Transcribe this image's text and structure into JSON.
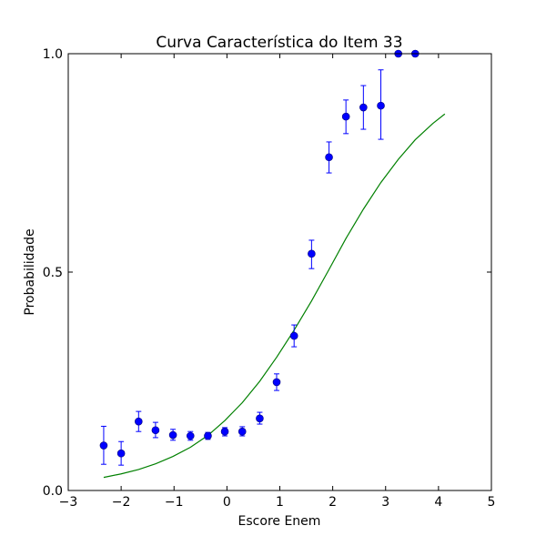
{
  "chart_data": {
    "type": "scatter",
    "title": "Curva Característica do Item 33",
    "xlabel": "Escore Enem",
    "ylabel": "Probabilidade",
    "xlim": [
      -3,
      5
    ],
    "ylim": [
      0.0,
      1.0
    ],
    "x_ticks": [
      {
        "value": -3,
        "label": "−3"
      },
      {
        "value": -2,
        "label": "−2"
      },
      {
        "value": -1,
        "label": "−1"
      },
      {
        "value": 0,
        "label": "0"
      },
      {
        "value": 1,
        "label": "1"
      },
      {
        "value": 2,
        "label": "2"
      },
      {
        "value": 3,
        "label": "3"
      },
      {
        "value": 4,
        "label": "4"
      },
      {
        "value": 5,
        "label": "5"
      }
    ],
    "y_ticks": [
      {
        "value": 0.0,
        "label": "0.0"
      },
      {
        "value": 0.5,
        "label": "0.5"
      },
      {
        "value": 1.0,
        "label": "1.0"
      }
    ],
    "grid": false,
    "series": [
      {
        "kind": "errorbar-points",
        "color": "#0000ff",
        "points": [
          {
            "x": -2.33,
            "y": 0.103,
            "lo": 0.06,
            "hi": 0.147
          },
          {
            "x": -2.0,
            "y": 0.085,
            "lo": 0.058,
            "hi": 0.112
          },
          {
            "x": -1.67,
            "y": 0.158,
            "lo": 0.135,
            "hi": 0.181
          },
          {
            "x": -1.35,
            "y": 0.138,
            "lo": 0.121,
            "hi": 0.156
          },
          {
            "x": -1.02,
            "y": 0.127,
            "lo": 0.115,
            "hi": 0.14
          },
          {
            "x": -0.69,
            "y": 0.125,
            "lo": 0.115,
            "hi": 0.135
          },
          {
            "x": -0.36,
            "y": 0.125,
            "lo": 0.117,
            "hi": 0.133
          },
          {
            "x": -0.04,
            "y": 0.135,
            "lo": 0.125,
            "hi": 0.144
          },
          {
            "x": 0.29,
            "y": 0.135,
            "lo": 0.125,
            "hi": 0.146
          },
          {
            "x": 0.62,
            "y": 0.165,
            "lo": 0.152,
            "hi": 0.179
          },
          {
            "x": 0.94,
            "y": 0.248,
            "lo": 0.229,
            "hi": 0.267
          },
          {
            "x": 1.27,
            "y": 0.354,
            "lo": 0.329,
            "hi": 0.379
          },
          {
            "x": 1.6,
            "y": 0.542,
            "lo": 0.508,
            "hi": 0.573
          },
          {
            "x": 1.93,
            "y": 0.763,
            "lo": 0.727,
            "hi": 0.798
          },
          {
            "x": 2.25,
            "y": 0.856,
            "lo": 0.817,
            "hi": 0.894
          },
          {
            "x": 2.58,
            "y": 0.877,
            "lo": 0.827,
            "hi": 0.927
          },
          {
            "x": 2.91,
            "y": 0.881,
            "lo": 0.804,
            "hi": 0.963
          },
          {
            "x": 3.24,
            "y": 1.0,
            "lo": 1.0,
            "hi": 1.0
          },
          {
            "x": 3.56,
            "y": 1.0,
            "lo": 1.0,
            "hi": 1.0
          }
        ]
      },
      {
        "kind": "curve",
        "color": "#008000",
        "x": [
          -2.33,
          -2.0,
          -1.67,
          -1.35,
          -1.02,
          -0.69,
          -0.36,
          -0.04,
          0.29,
          0.62,
          0.94,
          1.27,
          1.6,
          1.93,
          2.25,
          2.58,
          2.91,
          3.24,
          3.56,
          3.89,
          4.12
        ],
        "y": [
          0.03,
          0.038,
          0.048,
          0.061,
          0.078,
          0.099,
          0.126,
          0.16,
          0.201,
          0.25,
          0.305,
          0.367,
          0.434,
          0.506,
          0.577,
          0.644,
          0.705,
          0.758,
          0.803,
          0.84,
          0.862
        ]
      }
    ]
  }
}
